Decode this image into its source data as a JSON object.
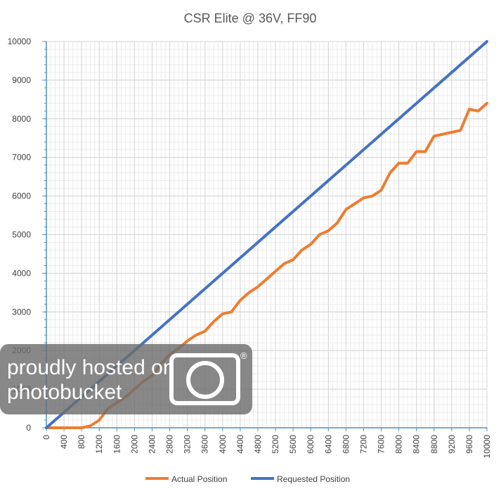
{
  "chart_data": {
    "type": "line",
    "title": "CSR Elite @ 36V, FF90",
    "xlim": [
      0,
      10000
    ],
    "ylim": [
      0,
      10000
    ],
    "x_tick_labels": [
      "0",
      "400",
      "800",
      "1200",
      "1600",
      "2000",
      "2400",
      "2800",
      "3200",
      "3600",
      "4000",
      "4400",
      "4800",
      "5200",
      "5600",
      "6000",
      "6400",
      "6800",
      "7200",
      "7600",
      "8000",
      "8400",
      "8800",
      "9200",
      "9600",
      "10000"
    ],
    "y_tick_labels": [
      "0",
      "1000",
      "2000",
      "3000",
      "4000",
      "5000",
      "6000",
      "7000",
      "8000",
      "9000",
      "10000"
    ],
    "x_minor_step": 100,
    "y_minor_step": 200,
    "grid": true,
    "legend_position": "bottom",
    "series": [
      {
        "name": "Actual Position",
        "color": "#ed7d31",
        "x": [
          0,
          200,
          400,
          600,
          800,
          1000,
          1200,
          1400,
          1600,
          1800,
          2000,
          2200,
          2400,
          2600,
          2800,
          3000,
          3200,
          3400,
          3600,
          3800,
          4000,
          4200,
          4400,
          4600,
          4800,
          5000,
          5200,
          5400,
          5600,
          5800,
          6000,
          6200,
          6400,
          6600,
          6800,
          7000,
          7200,
          7400,
          7600,
          7800,
          8000,
          8200,
          8400,
          8600,
          8800,
          9000,
          9200,
          9400,
          9600,
          9800,
          10000
        ],
        "y": [
          0,
          0,
          0,
          0,
          0,
          50,
          200,
          500,
          650,
          800,
          1000,
          1200,
          1350,
          1650,
          1900,
          2050,
          2250,
          2400,
          2500,
          2750,
          2950,
          3000,
          3300,
          3500,
          3650,
          3850,
          4050,
          4250,
          4350,
          4600,
          4750,
          5000,
          5100,
          5300,
          5650,
          5800,
          5950,
          6000,
          6150,
          6600,
          6850,
          6850,
          7150,
          7150,
          7550,
          7600,
          7650,
          7700,
          8250,
          8200,
          8400
        ]
      },
      {
        "name": "Requested Position",
        "color": "#4472c4",
        "x": [
          0,
          10000
        ],
        "y": [
          0,
          10000
        ]
      }
    ]
  },
  "watermark": {
    "line1": "proudly hosted on",
    "line2": "photobucket",
    "mark": "®"
  }
}
